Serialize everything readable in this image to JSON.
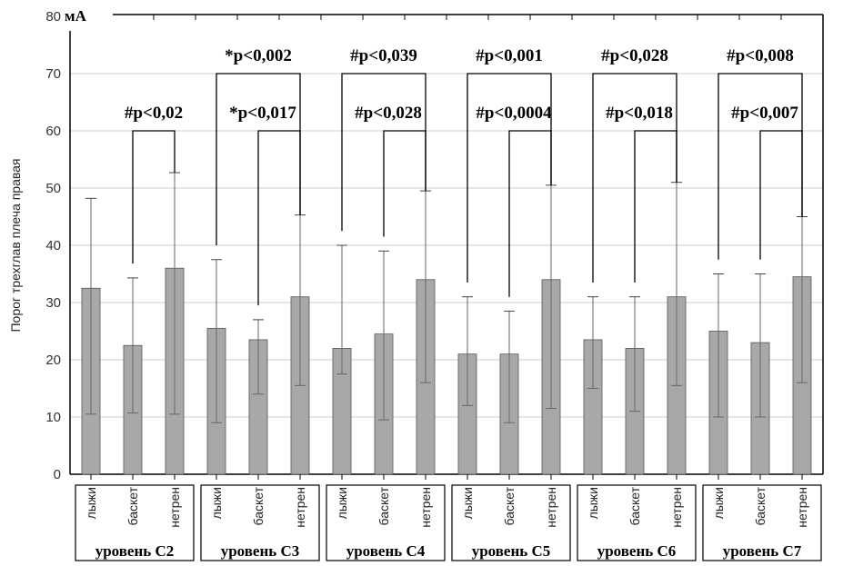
{
  "chart_data": {
    "type": "bar",
    "ylabel": "Порог трехглав плеча правая",
    "unit_label": "мА",
    "ylim": [
      0,
      80
    ],
    "yticks": [
      0,
      10,
      20,
      30,
      40,
      50,
      60,
      70,
      80
    ],
    "grid": true,
    "categories": [
      "лыжи",
      "баскет",
      "нетрен"
    ],
    "groups": [
      {
        "name": "уровень С2",
        "values": [
          32.5,
          22.5,
          36
        ],
        "err_low": [
          10.5,
          10.7,
          10.5
        ],
        "err_high": [
          48.2,
          34.3,
          52.7
        ],
        "brackets": [
          {
            "from": 1,
            "to": 2,
            "level": 60,
            "label": "#p<0,02"
          }
        ]
      },
      {
        "name": "уровень С3",
        "values": [
          25.5,
          23.5,
          31
        ],
        "err_low": [
          9,
          14,
          15.5
        ],
        "err_high": [
          37.5,
          27,
          45.3
        ],
        "brackets": [
          {
            "from": 0,
            "to": 2,
            "level": 70,
            "label": "*p<0,002"
          },
          {
            "from": 1,
            "to": 2,
            "level": 60,
            "label": "*p<0,017"
          }
        ]
      },
      {
        "name": "уровень С4",
        "values": [
          22,
          24.5,
          34
        ],
        "err_low": [
          17.5,
          9.5,
          16
        ],
        "err_high": [
          40,
          39,
          49.5
        ],
        "brackets": [
          {
            "from": 0,
            "to": 2,
            "level": 70,
            "label": "#p<0,039"
          },
          {
            "from": 1,
            "to": 2,
            "level": 60,
            "label": "#p<0,028"
          }
        ]
      },
      {
        "name": "уровень С5",
        "values": [
          21,
          21,
          34
        ],
        "err_low": [
          12,
          9,
          11.5
        ],
        "err_high": [
          31,
          28.5,
          50.5
        ],
        "brackets": [
          {
            "from": 0,
            "to": 2,
            "level": 70,
            "label": "#p<0,001"
          },
          {
            "from": 1,
            "to": 2,
            "level": 60,
            "label": "#p<0,0004"
          }
        ]
      },
      {
        "name": "уровень С6",
        "values": [
          23.5,
          22,
          31
        ],
        "err_low": [
          15,
          11,
          15.5
        ],
        "err_high": [
          31,
          31,
          51
        ],
        "brackets": [
          {
            "from": 0,
            "to": 2,
            "level": 70,
            "label": "#p<0,028"
          },
          {
            "from": 1,
            "to": 2,
            "level": 60,
            "label": "#p<0,018"
          }
        ]
      },
      {
        "name": "уровень С7",
        "values": [
          25,
          23,
          34.5
        ],
        "err_low": [
          10,
          10,
          16
        ],
        "err_high": [
          35,
          35,
          45
        ],
        "brackets": [
          {
            "from": 0,
            "to": 2,
            "level": 70,
            "label": "#p<0,008"
          },
          {
            "from": 1,
            "to": 2,
            "level": 60,
            "label": "#p<0,007"
          }
        ]
      }
    ],
    "colors": {
      "bar": "#a8a8a8",
      "bar_edge": "#555555",
      "grid": "#cccccc"
    }
  }
}
